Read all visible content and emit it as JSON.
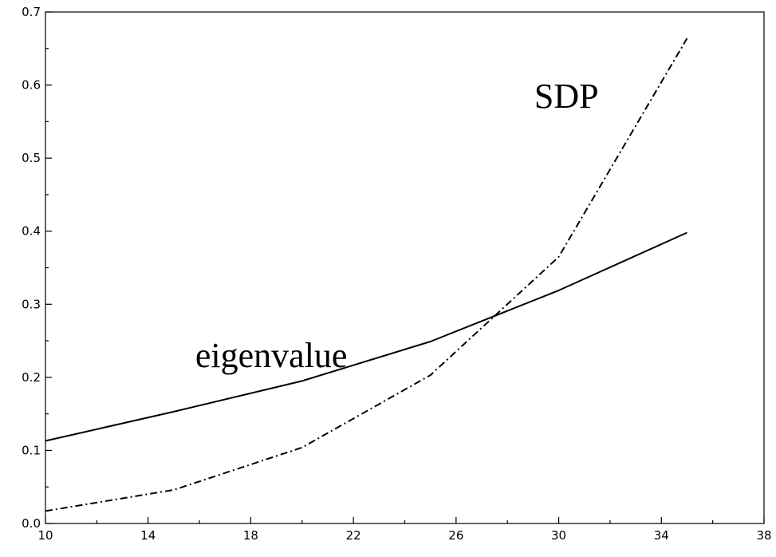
{
  "chart_data": {
    "type": "line",
    "title": "",
    "xlabel": "",
    "ylabel": "",
    "xlim": [
      10,
      38
    ],
    "ylim": [
      0,
      0.7
    ],
    "x_ticks": [
      10,
      14,
      18,
      22,
      26,
      30,
      34,
      38
    ],
    "x_tick_labels": [
      "10",
      "14",
      "18",
      "22",
      "26",
      "30",
      "34",
      "38"
    ],
    "x_minor_ticks": [
      12,
      16,
      20,
      24,
      28,
      32,
      36
    ],
    "y_ticks": [
      0,
      0.1,
      0.2,
      0.3,
      0.4,
      0.5,
      0.6,
      0.7
    ],
    "y_tick_labels": [
      "0.0",
      "0.1",
      "0.2",
      "0.3",
      "0.4",
      "0.5",
      "0.6",
      "0.7"
    ],
    "y_minor_ticks": [
      0.05,
      0.15,
      0.25,
      0.35,
      0.45,
      0.55,
      0.65
    ],
    "grid": false,
    "legend": "none",
    "series": [
      {
        "name": "eigenvalue",
        "line_style": "solid",
        "color": "#000000",
        "x": [
          10,
          15,
          20,
          25,
          30,
          35
        ],
        "y": [
          0.113,
          0.153,
          0.195,
          0.249,
          0.319,
          0.398
        ]
      },
      {
        "name": "SDP",
        "line_style": "dash-dot",
        "color": "#000000",
        "x": [
          10,
          15,
          20,
          25,
          30,
          35
        ],
        "y": [
          0.017,
          0.046,
          0.104,
          0.203,
          0.365,
          0.664
        ]
      }
    ],
    "annotations": [
      {
        "text": "eigenvalue",
        "x": 18.8,
        "y": 0.214
      },
      {
        "text": "SDP",
        "x": 30.3,
        "y": 0.569
      }
    ]
  }
}
